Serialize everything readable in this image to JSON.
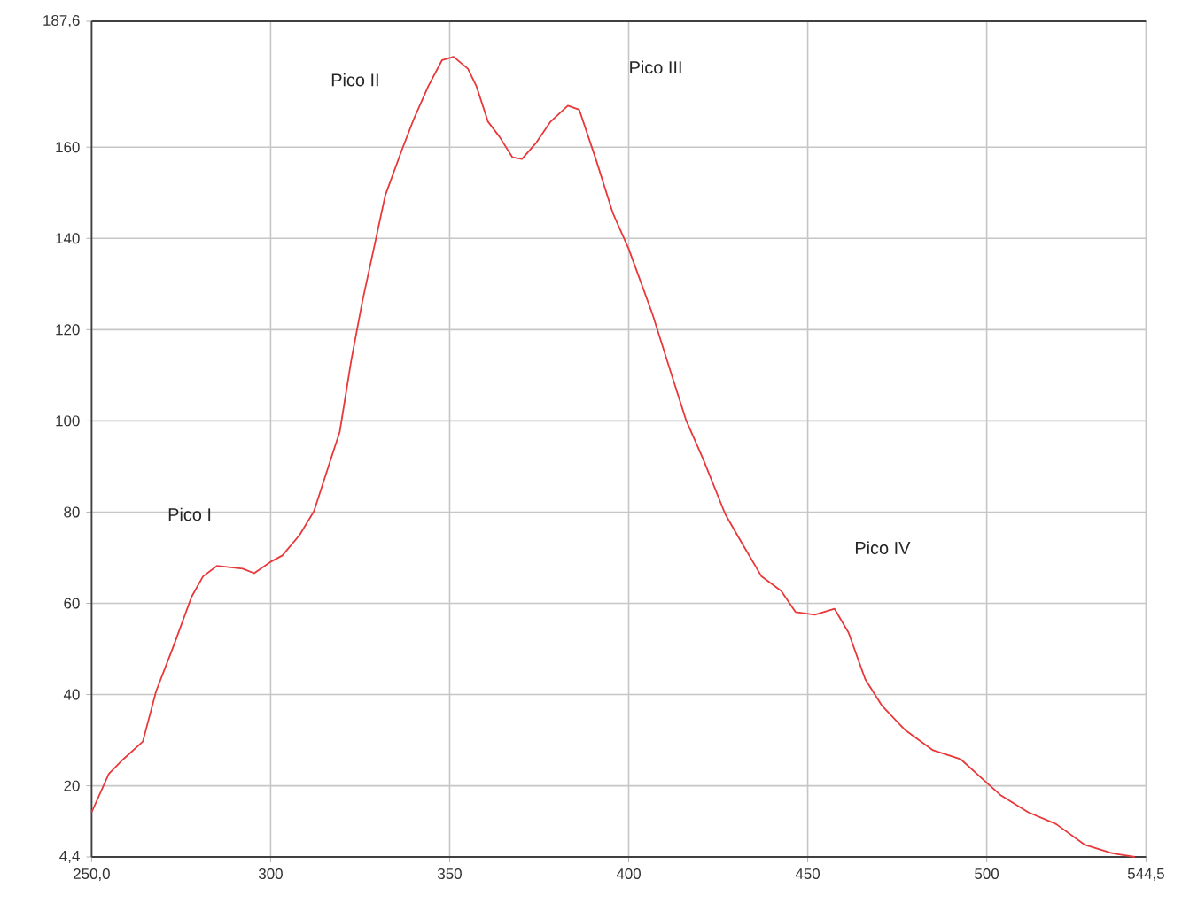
{
  "chart_data": {
    "type": "line",
    "x": [
      250,
      254.8,
      258.8,
      264.3,
      268,
      273.1,
      277.9,
      281.1,
      285,
      292.2,
      295.4,
      300.2,
      303.3,
      308.1,
      312.1,
      316.1,
      319.3,
      322.5,
      325.6,
      328.8,
      332,
      336.8,
      340,
      344,
      347.9,
      351.1,
      355.1,
      357.5,
      360.7,
      363.9,
      367.5,
      370.2,
      374.2,
      378.2,
      383,
      386.2,
      390.9,
      395.6,
      400,
      406.6,
      411.3,
      416,
      420.7,
      427,
      431.7,
      437.1,
      442.6,
      446.6,
      452,
      457.5,
      461.4,
      466.1,
      470.8,
      477.1,
      485,
      492.8,
      499.1,
      503.8,
      511.6,
      519.4,
      527.3,
      535.1,
      541.4
    ],
    "series": [
      {
        "color": "#e8383a",
        "values": [
          14.2,
          22.6,
          25.8,
          29.7,
          40.7,
          51.1,
          61.4,
          65.9,
          68.2,
          67.6,
          66.6,
          69.2,
          70.5,
          75,
          80.2,
          89.9,
          97.6,
          113.2,
          126.1,
          137.7,
          149.4,
          159.7,
          166.2,
          173.3,
          179.1,
          179.8,
          177.2,
          173.3,
          165.6,
          162.3,
          157.8,
          157.4,
          161,
          165.6,
          169.1,
          168.2,
          157.2,
          145.5,
          137.7,
          123.5,
          111.8,
          100.2,
          91.8,
          79.5,
          73.1,
          65.9,
          62.7,
          58.1,
          57.5,
          58.8,
          53.6,
          43.3,
          37.5,
          32.3,
          27.8,
          25.8,
          21.3,
          18,
          14.2,
          11.6,
          7.1,
          5.2,
          4.4
        ]
      }
    ],
    "xlim": [
      250,
      544.5
    ],
    "ylim": [
      4.4,
      187.6
    ],
    "xticks": [
      {
        "value": 250,
        "label": "250,0"
      },
      300,
      350,
      400,
      450,
      500,
      {
        "value": 544.5,
        "label": "544,5"
      }
    ],
    "yticks": [
      {
        "value": 4.4,
        "label": "4,4"
      },
      20,
      40,
      60,
      80,
      100,
      120,
      140,
      160,
      {
        "value": 187.6,
        "label": "187,6"
      }
    ],
    "annotations": [
      "Pico I",
      "Pico II",
      "Pico III",
      "Pico IV"
    ],
    "grid": true,
    "marker": "none",
    "line_style": "solid"
  }
}
